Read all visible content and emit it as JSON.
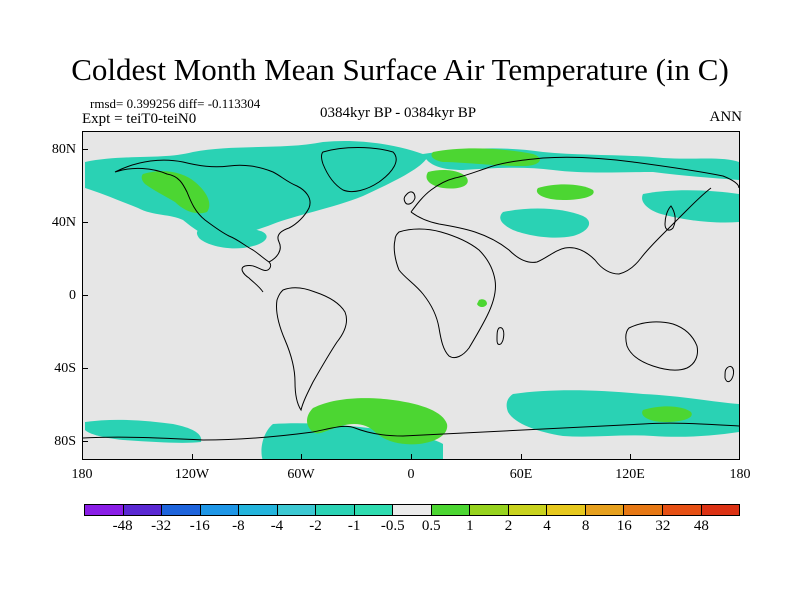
{
  "title": "Coldest Month Mean Surface Air Temperature (in C)",
  "stats": "rmsd= 0.399256 diff= -0.113304",
  "expt": "Expt = teiT0-teiN0",
  "period": "0384kyr BP - 0384kyr BP",
  "season": "ANN",
  "map": {
    "projection": "equirectangular",
    "lon_range": [
      -180,
      180
    ],
    "lat_range": [
      -90,
      90
    ],
    "background_color": "#e6e6e6",
    "coastline_color": "#000000"
  },
  "axes": {
    "lat_ticks": [
      {
        "value": 80,
        "label": "80N"
      },
      {
        "value": 40,
        "label": "40N"
      },
      {
        "value": 0,
        "label": "0"
      },
      {
        "value": -40,
        "label": "40S"
      },
      {
        "value": -80,
        "label": "80S"
      }
    ],
    "lon_ticks": [
      {
        "value": -180,
        "label": "180"
      },
      {
        "value": -120,
        "label": "120W"
      },
      {
        "value": -60,
        "label": "60W"
      },
      {
        "value": 0,
        "label": "0"
      },
      {
        "value": 60,
        "label": "60E"
      },
      {
        "value": 120,
        "label": "120E"
      },
      {
        "value": 180,
        "label": "180"
      }
    ]
  },
  "colorbar": {
    "colors": [
      "#8a1ee6",
      "#5a28d2",
      "#1e64dc",
      "#1e96e6",
      "#23b4dc",
      "#3cc8d2",
      "#2ad2b4",
      "#2fdcb0",
      "#ebebeb",
      "#4cd632",
      "#96d21e",
      "#c8d21e",
      "#e6c81e",
      "#e6a01e",
      "#e67814",
      "#e65014",
      "#dc3214"
    ],
    "labels": [
      "-48",
      "-32",
      "-16",
      "-8",
      "-4",
      "-2",
      "-1",
      "-0.5",
      "0.5",
      "1",
      "2",
      "4",
      "8",
      "16",
      "32",
      "48"
    ]
  },
  "anomaly_regions": [
    {
      "name": "north-atlantic-arctic-band",
      "color": "#2ad2b4"
    },
    {
      "name": "western-north-america",
      "color": "#4cd632"
    },
    {
      "name": "siberia",
      "color": "#4cd632"
    },
    {
      "name": "southern-ocean-atlantic",
      "color": "#4cd632"
    },
    {
      "name": "southern-ocean-indian",
      "color": "#2ad2b4"
    }
  ]
}
